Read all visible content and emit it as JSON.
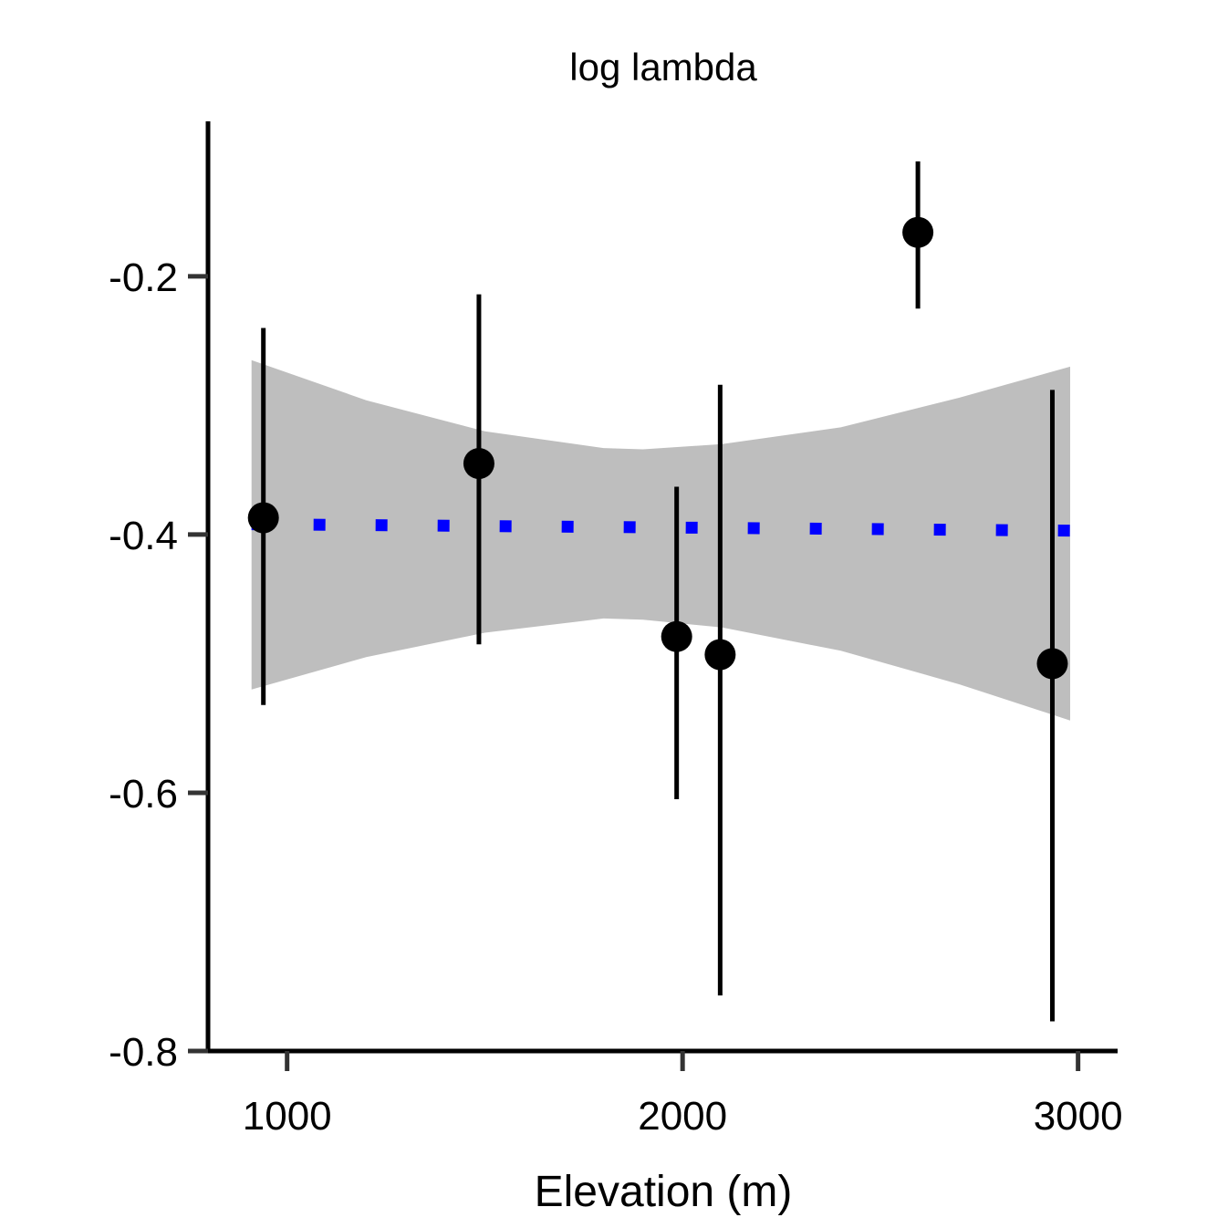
{
  "chart_data": {
    "type": "scatter",
    "title": "log lambda",
    "xlabel": "Elevation (m)",
    "ylabel": "",
    "xlim": [
      800,
      3100
    ],
    "ylim": [
      -0.8,
      -0.08
    ],
    "x_ticks": [
      1000,
      2000,
      3000
    ],
    "x_tick_labels": [
      "1000",
      "2000",
      "3000"
    ],
    "y_ticks": [
      -0.8,
      -0.6,
      -0.4,
      -0.2
    ],
    "y_tick_labels": [
      "-0.8",
      "-0.6",
      "-0.4",
      "-0.2"
    ],
    "grid": false,
    "legend": "none",
    "points": [
      {
        "x": 940,
        "y": -0.387,
        "lower": -0.532,
        "upper": -0.24
      },
      {
        "x": 1485,
        "y": -0.345,
        "lower": -0.485,
        "upper": -0.214
      },
      {
        "x": 1985,
        "y": -0.479,
        "lower": -0.605,
        "upper": -0.363
      },
      {
        "x": 2095,
        "y": -0.493,
        "lower": -0.757,
        "upper": -0.284
      },
      {
        "x": 2595,
        "y": -0.166,
        "lower": -0.225,
        "upper": -0.111
      },
      {
        "x": 2935,
        "y": -0.5,
        "lower": -0.777,
        "upper": -0.288
      }
    ],
    "trend": {
      "x": [
        910,
        2980
      ],
      "y": [
        -0.392,
        -0.397
      ],
      "color": "#0000ff",
      "style": "dotted"
    },
    "ribbon": {
      "x": [
        910,
        1200,
        1500,
        1800,
        1900,
        2100,
        2400,
        2700,
        2980
      ],
      "upper": [
        -0.265,
        -0.296,
        -0.32,
        -0.333,
        -0.334,
        -0.33,
        -0.317,
        -0.294,
        -0.27
      ],
      "lower": [
        -0.52,
        -0.495,
        -0.476,
        -0.465,
        -0.466,
        -0.472,
        -0.49,
        -0.516,
        -0.544
      ],
      "color": "#bebebe"
    },
    "colors": {
      "points": "#000000",
      "axis": "#000000",
      "ticks": "#333333"
    }
  }
}
